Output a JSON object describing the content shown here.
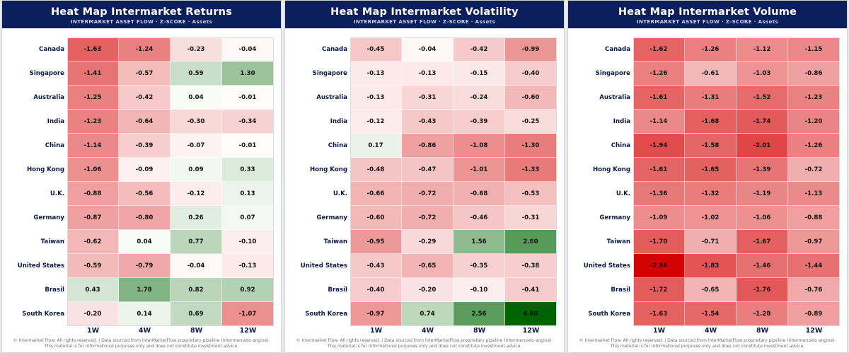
{
  "panels": [
    {
      "title": "Heat Map Intermarket Returns",
      "subtitle": "INTERMARKET ASSET FLOW  ·  Z-SCORE  ·  Assets",
      "footer_line1": "© Intermarket Flow. All rights reserved.   |   Data sourced from InterMarketFlow proprietary pipeline (Intermercado engine).",
      "footer_line2": "This material is for informational purposes only and does not constitute investment advice."
    },
    {
      "title": "Heat Map Intermarket Volatility",
      "subtitle": "INTERMARKET ASSET FLOW  ·  Z-SCORE  ·  Assets",
      "footer_line1": "© Intermarket Flow. All rights reserved.   |   Data sourced from InterMarketFlow proprietary pipeline (Intermercado engine).",
      "footer_line2": "This material is for informational purposes only and does not constitute investment advice."
    },
    {
      "title": "Heat Map Intermarket Volume",
      "subtitle": "INTERMARKET ASSET FLOW  ·  Z-SCORE  ·  Assets",
      "footer_line1": "© Intermarket Flow. All rights reserved.   |   Data sourced from InterMarketFlow proprietary pipeline (Intermercado engine).",
      "footer_line2": "This material is for informational purposes only and does not constitute investment advice."
    }
  ],
  "colors": {
    "header_bg": "#0b1f5c",
    "negative_strong": "#d40000",
    "positive_strong": "#006400",
    "neutral": "#ffffff"
  },
  "chart_data": [
    {
      "type": "heatmap",
      "title": "Heat Map Intermarket Returns",
      "subtitle": "INTERMARKET ASSET FLOW  ·  Z-SCORE  ·  Assets",
      "rows": [
        "Canada",
        "Singapore",
        "Australia",
        "India",
        "China",
        "Hong Kong",
        "U.K.",
        "Germany",
        "Taiwan",
        "United States",
        "Brasil",
        "South Korea"
      ],
      "columns": [
        "1W",
        "4W",
        "8W",
        "12W"
      ],
      "values": [
        [
          -1.63,
          -1.24,
          -0.23,
          -0.04
        ],
        [
          -1.41,
          -0.57,
          0.59,
          1.3
        ],
        [
          -1.25,
          -0.42,
          0.04,
          -0.01
        ],
        [
          -1.23,
          -0.64,
          -0.3,
          -0.34
        ],
        [
          -1.14,
          -0.39,
          -0.07,
          -0.01
        ],
        [
          -1.06,
          -0.09,
          0.09,
          0.33
        ],
        [
          -0.88,
          -0.56,
          -0.12,
          0.13
        ],
        [
          -0.87,
          -0.8,
          0.26,
          0.07
        ],
        [
          -0.62,
          0.04,
          0.77,
          -0.1
        ],
        [
          -0.59,
          -0.79,
          -0.04,
          -0.13
        ],
        [
          0.43,
          1.78,
          0.82,
          0.92
        ],
        [
          -0.2,
          0.14,
          0.69,
          -1.07
        ]
      ]
    },
    {
      "type": "heatmap",
      "title": "Heat Map Intermarket Volatility",
      "subtitle": "INTERMARKET ASSET FLOW  ·  Z-SCORE  ·  Assets",
      "rows": [
        "Canada",
        "Singapore",
        "Australia",
        "India",
        "China",
        "Hong Kong",
        "U.K.",
        "Germany",
        "Taiwan",
        "United States",
        "Brasil",
        "South Korea"
      ],
      "columns": [
        "1W",
        "4W",
        "8W",
        "12W"
      ],
      "values": [
        [
          -0.45,
          -0.04,
          -0.42,
          -0.99
        ],
        [
          -0.13,
          -0.13,
          -0.15,
          -0.4
        ],
        [
          -0.13,
          -0.31,
          -0.24,
          -0.6
        ],
        [
          -0.12,
          -0.43,
          -0.39,
          -0.25
        ],
        [
          0.17,
          -0.86,
          -1.08,
          -1.3
        ],
        [
          -0.48,
          -0.47,
          -1.01,
          -1.33
        ],
        [
          -0.66,
          -0.72,
          -0.68,
          -0.53
        ],
        [
          -0.6,
          -0.72,
          -0.46,
          -0.31
        ],
        [
          -0.95,
          -0.29,
          1.56,
          2.6
        ],
        [
          -0.43,
          -0.65,
          -0.35,
          -0.38
        ],
        [
          -0.4,
          -0.2,
          -0.1,
          -0.41
        ],
        [
          -0.97,
          0.74,
          2.56,
          4.6
        ]
      ]
    },
    {
      "type": "heatmap",
      "title": "Heat Map Intermarket Volume",
      "subtitle": "INTERMARKET ASSET FLOW  ·  Z-SCORE  ·  Assets",
      "rows": [
        "Canada",
        "Singapore",
        "Australia",
        "India",
        "China",
        "Hong Kong",
        "U.K.",
        "Germany",
        "Taiwan",
        "United States",
        "Brasil",
        "South Korea"
      ],
      "columns": [
        "1W",
        "4W",
        "8W",
        "12W"
      ],
      "values": [
        [
          -1.62,
          -1.26,
          -1.12,
          -1.15
        ],
        [
          -1.26,
          -0.61,
          -1.03,
          -0.86
        ],
        [
          -1.61,
          -1.31,
          -1.52,
          -1.23
        ],
        [
          -1.14,
          -1.68,
          -1.74,
          -1.2
        ],
        [
          -1.94,
          -1.58,
          -2.01,
          -1.26
        ],
        [
          -1.61,
          -1.65,
          -1.39,
          -0.72
        ],
        [
          -1.36,
          -1.32,
          -1.19,
          -1.13
        ],
        [
          -1.09,
          -1.02,
          -1.06,
          -0.88
        ],
        [
          -1.7,
          -0.71,
          -1.67,
          -0.97
        ],
        [
          -2.96,
          -1.83,
          -1.46,
          -1.44
        ],
        [
          -1.72,
          -0.65,
          -1.76,
          -0.76
        ],
        [
          -1.63,
          -1.54,
          -1.28,
          -0.89
        ]
      ]
    }
  ]
}
